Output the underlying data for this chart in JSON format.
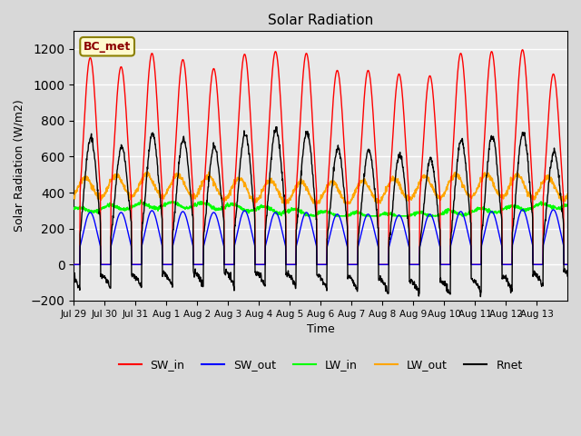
{
  "title": "Solar Radiation",
  "xlabel": "Time",
  "ylabel": "Solar Radiation (W/m2)",
  "ylim": [
    -200,
    1300
  ],
  "yticks": [
    -200,
    0,
    200,
    400,
    600,
    800,
    1000,
    1200
  ],
  "label": "BC_met",
  "legend_labels": [
    "SW_in",
    "SW_out",
    "LW_in",
    "LW_out",
    "Rnet"
  ],
  "legend_colors": [
    "#ff0000",
    "#0000ff",
    "#00ff00",
    "#ffa500",
    "#000000"
  ],
  "tick_labels": [
    "Jul 29",
    "Jul 30",
    "Jul 31",
    "Aug 1",
    "Aug 2",
    "Aug 3",
    "Aug 4",
    "Aug 5",
    "Aug 6",
    "Aug 7",
    "Aug 8",
    "Aug 9",
    "Aug 10",
    "Aug 11",
    "Aug 12",
    "Aug 13"
  ],
  "sw_in_peaks": [
    1150,
    1100,
    1175,
    1140,
    1090,
    1170,
    1185,
    1175,
    1080,
    1080,
    1060,
    1050,
    1175,
    1185,
    1195,
    1060
  ],
  "sw_out_peaks": [
    290,
    290,
    300,
    295,
    290,
    300,
    290,
    290,
    280,
    280,
    275,
    280,
    295,
    295,
    305,
    305
  ]
}
